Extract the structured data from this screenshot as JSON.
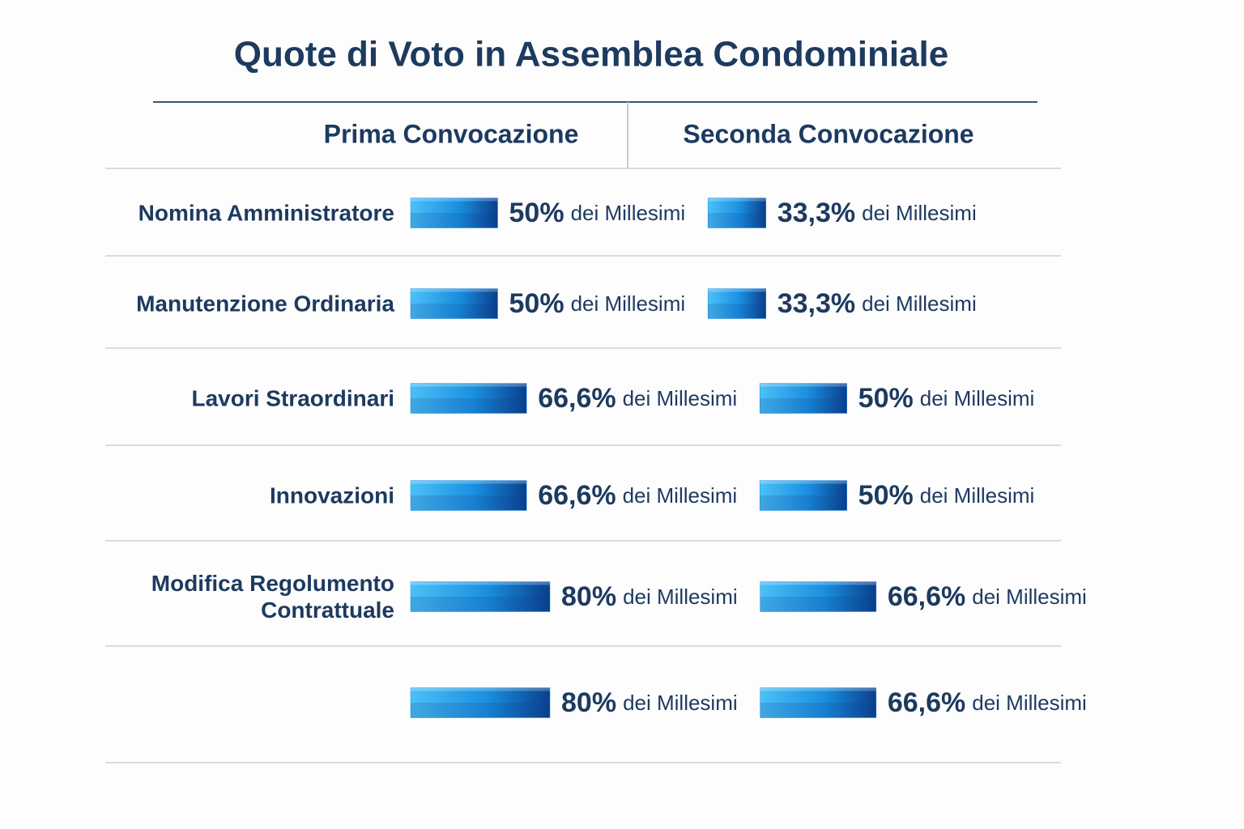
{
  "chart_data": {
    "type": "bar",
    "title": "Quote di Voto in Assemblea Condominiale",
    "categories": [
      "Nomina Amministratore",
      "Manutenzione Ordinaria",
      "Lavori Straordinari",
      "Innovazioni",
      "Modifica Regolumento\nContrattuale",
      null
    ],
    "value_suffix": "dei Millesimi",
    "series": [
      {
        "name": "Prima Convocazione",
        "color": "#1a8fe0",
        "values": [
          50,
          50,
          66.6,
          66.6,
          80,
          80
        ],
        "value_labels": [
          "50%",
          "50%",
          "66,6%",
          "66,6%",
          "80%",
          "80%"
        ]
      },
      {
        "name": "Seconda Convocazione",
        "color": "#1a8fe0",
        "values": [
          33.3,
          33.3,
          50,
          50,
          66.6,
          66.6
        ],
        "value_labels": [
          "33,3%",
          "33,3%",
          "50%",
          "50%",
          "66,6%",
          "66,6%"
        ]
      }
    ]
  }
}
